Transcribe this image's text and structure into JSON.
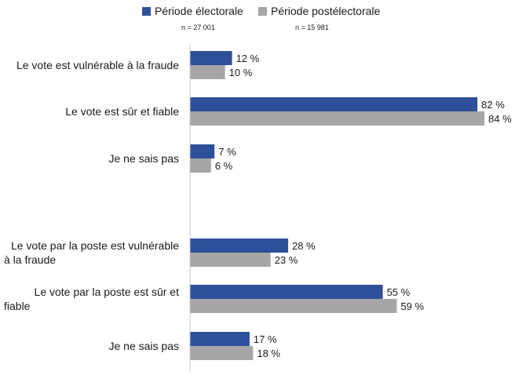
{
  "chart_data": {
    "type": "bar",
    "orientation": "horizontal",
    "categories": [
      "Le vote est vulnérable à la fraude",
      "Le vote est sûr et fiable",
      "Je ne sais pas",
      "",
      "Le vote par la poste est vulnérable à la fraude",
      "Le vote par la poste est sûr et fiable",
      "Je ne sais pas"
    ],
    "category_label_lines": [
      [
        "Le vote est vulnérable à la fraude"
      ],
      [
        "Le vote est sûr et fiable"
      ],
      [
        "Je ne sais pas"
      ],
      [],
      [
        "Le vote par la poste est vulnérable",
        "à la fraude"
      ],
      [
        "Le vote par la poste est sûr et",
        "fiable"
      ],
      [
        "Je ne sais pas"
      ]
    ],
    "series": [
      {
        "name": "Période électorale",
        "n_label": "n = 27 001",
        "color": "#2e4f9a",
        "values": [
          12,
          82,
          7,
          null,
          28,
          55,
          17
        ],
        "value_labels": [
          "12 %",
          "82 %",
          "7 %",
          "",
          "28 %",
          "55 %",
          "17 %"
        ]
      },
      {
        "name": "Période postélectorale",
        "n_label": "n = 15 981",
        "color": "#a6a6a6",
        "values": [
          10,
          84,
          6,
          null,
          23,
          59,
          18
        ],
        "value_labels": [
          "10 %",
          "84 %",
          "6 %",
          "",
          "23 %",
          "59 %",
          "18 %"
        ]
      }
    ],
    "xlim": [
      0,
      100
    ],
    "unit": "%",
    "legend_position": "top",
    "grid": false
  }
}
